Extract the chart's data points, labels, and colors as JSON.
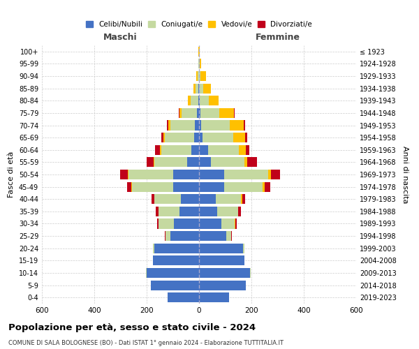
{
  "age_groups": [
    "0-4",
    "5-9",
    "10-14",
    "15-19",
    "20-24",
    "25-29",
    "30-34",
    "35-39",
    "40-44",
    "45-49",
    "50-54",
    "55-59",
    "60-64",
    "65-69",
    "70-74",
    "75-79",
    "80-84",
    "85-89",
    "90-94",
    "95-99",
    "100+"
  ],
  "birth_years": [
    "2019-2023",
    "2014-2018",
    "2009-2013",
    "2004-2008",
    "1999-2003",
    "1994-1998",
    "1989-1993",
    "1984-1988",
    "1979-1983",
    "1974-1978",
    "1969-1973",
    "1964-1968",
    "1959-1963",
    "1954-1958",
    "1949-1953",
    "1944-1948",
    "1939-1943",
    "1934-1938",
    "1929-1933",
    "1924-1928",
    "≤ 1923"
  ],
  "colors": {
    "celibi": "#4472c4",
    "coniugati": "#c5d9a0",
    "vedovi": "#ffc000",
    "divorziati": "#c0001a"
  },
  "maschi": {
    "celibi": [
      120,
      185,
      200,
      175,
      170,
      110,
      95,
      75,
      70,
      100,
      100,
      45,
      30,
      20,
      15,
      8,
      4,
      2,
      1,
      1,
      1
    ],
    "coniugati": [
      0,
      0,
      2,
      2,
      5,
      18,
      60,
      80,
      100,
      155,
      170,
      125,
      115,
      110,
      95,
      60,
      28,
      12,
      4,
      1,
      0
    ],
    "vedovi": [
      0,
      0,
      0,
      0,
      0,
      0,
      1,
      1,
      2,
      3,
      3,
      3,
      5,
      5,
      8,
      8,
      12,
      8,
      5,
      2,
      1
    ],
    "divorziati": [
      0,
      0,
      0,
      0,
      0,
      3,
      5,
      10,
      10,
      18,
      28,
      28,
      18,
      8,
      5,
      2,
      0,
      0,
      0,
      0,
      0
    ]
  },
  "femmine": {
    "celibi": [
      115,
      178,
      195,
      172,
      168,
      105,
      85,
      70,
      65,
      95,
      95,
      45,
      35,
      12,
      8,
      4,
      2,
      1,
      1,
      1,
      1
    ],
    "coniugati": [
      0,
      0,
      2,
      2,
      5,
      18,
      52,
      78,
      95,
      148,
      168,
      128,
      118,
      118,
      108,
      72,
      35,
      15,
      4,
      1,
      0
    ],
    "vedovi": [
      0,
      0,
      0,
      0,
      0,
      0,
      1,
      2,
      5,
      8,
      12,
      12,
      25,
      45,
      55,
      58,
      38,
      30,
      22,
      5,
      2
    ],
    "divorziati": [
      0,
      0,
      0,
      0,
      0,
      3,
      5,
      10,
      10,
      20,
      35,
      35,
      15,
      8,
      5,
      2,
      0,
      0,
      0,
      0,
      0
    ]
  },
  "xlim": 600,
  "title": "Popolazione per età, sesso e stato civile - 2024",
  "subtitle": "COMUNE DI SALA BOLOGNESE (BO) - Dati ISTAT 1° gennaio 2024 - Elaborazione TUTTITALIA.IT",
  "ylabel_left": "Fasce di età",
  "ylabel_right": "Anni di nascita",
  "xlabel_left": "Maschi",
  "xlabel_right": "Femmine",
  "legend_labels": [
    "Celibi/Nubili",
    "Coniugati/e",
    "Vedovi/e",
    "Divorziati/e"
  ],
  "bg_color": "#ffffff",
  "grid_color": "#cccccc"
}
